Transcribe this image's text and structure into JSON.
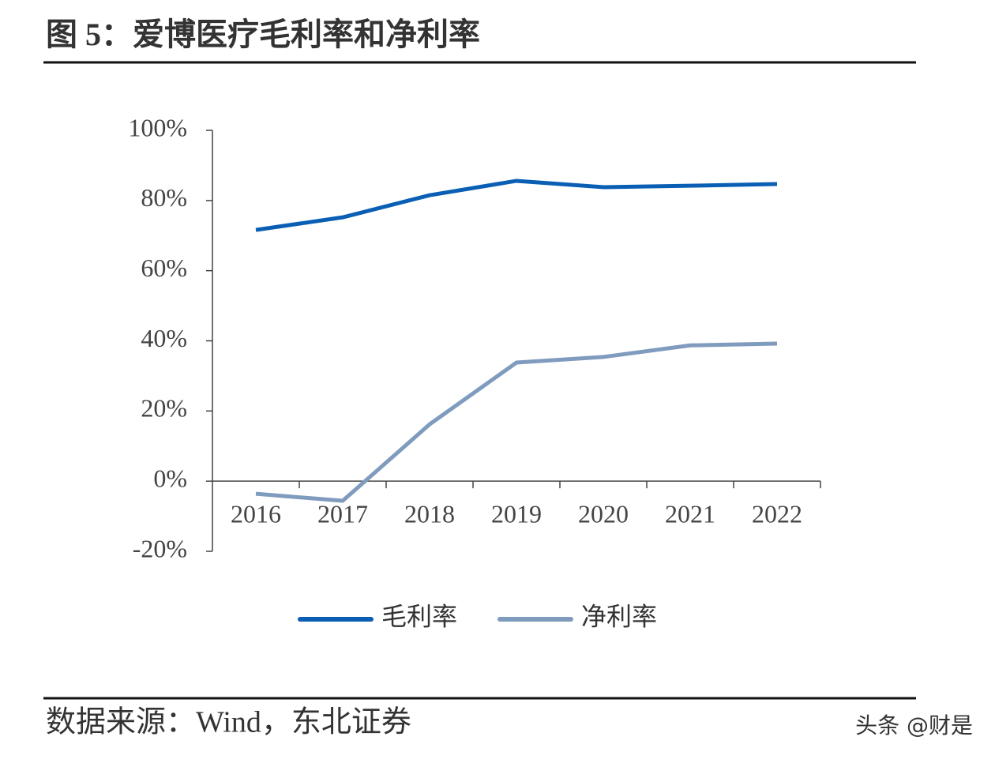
{
  "chart_data": {
    "type": "line",
    "title": "图 5：爱博医疗毛利率和净利率",
    "source": "数据来源：Wind，东北证券",
    "watermark": "头条 @财是",
    "categories": [
      "2016",
      "2017",
      "2018",
      "2019",
      "2020",
      "2021",
      "2022"
    ],
    "series": [
      {
        "name": "毛利率",
        "color": "#0a5fb4",
        "values": [
          71.6,
          75.2,
          81.5,
          85.6,
          83.8,
          84.2,
          84.7
        ]
      },
      {
        "name": "净利率",
        "color": "#7f9bbd",
        "values": [
          -3.6,
          -5.6,
          16.2,
          33.8,
          35.4,
          38.7,
          39.2
        ]
      }
    ],
    "ylim": [
      -20,
      100
    ],
    "yticks": [
      {
        "value": -20,
        "label": "-20%"
      },
      {
        "value": 0,
        "label": "0%"
      },
      {
        "value": 20,
        "label": "20%"
      },
      {
        "value": 40,
        "label": "40%"
      },
      {
        "value": 60,
        "label": "60%"
      },
      {
        "value": 80,
        "label": "80%"
      },
      {
        "value": 100,
        "label": "100%"
      }
    ],
    "grid": false,
    "legend": "bottom"
  }
}
